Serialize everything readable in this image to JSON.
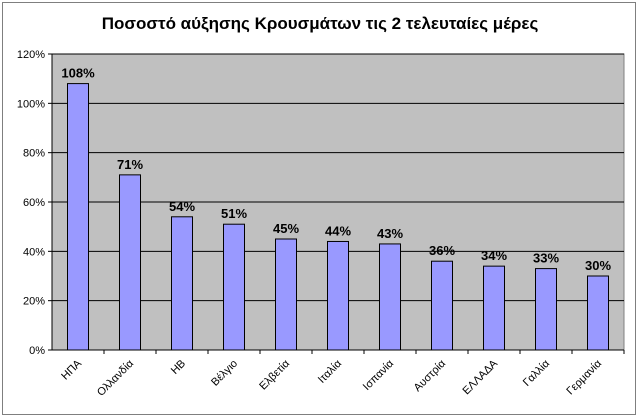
{
  "chart_data": {
    "type": "bar",
    "title": "Ποσοστό αύξησης Κρουσμάτων τις 2 τελευταίες μέρες",
    "categories": [
      "ΗΠΑ",
      "Ολλανδία",
      "ΗΒ",
      "Βέλγιο",
      "Ελβετία",
      "Ιταλία",
      "Ισπανία",
      "Αυστρία",
      "ΕΛΛΑΔΑ",
      "Γαλλία",
      "Γερμανία"
    ],
    "values": [
      108,
      71,
      54,
      51,
      45,
      44,
      43,
      36,
      34,
      33,
      30
    ],
    "data_labels": [
      "108%",
      "71%",
      "54%",
      "51%",
      "45%",
      "44%",
      "43%",
      "36%",
      "34%",
      "33%",
      "30%"
    ],
    "y_ticks": [
      0,
      20,
      40,
      60,
      80,
      100,
      120
    ],
    "y_tick_labels": [
      "0%",
      "20%",
      "40%",
      "60%",
      "80%",
      "100%",
      "120%"
    ],
    "ylim": [
      0,
      120
    ],
    "grid": true,
    "legend": false,
    "xlabel": "",
    "ylabel": "",
    "colors": {
      "bar_fill": "#9999ff",
      "bar_stroke": "#000000",
      "plot_background": "#c0c0c0",
      "gridline": "#000000"
    }
  }
}
